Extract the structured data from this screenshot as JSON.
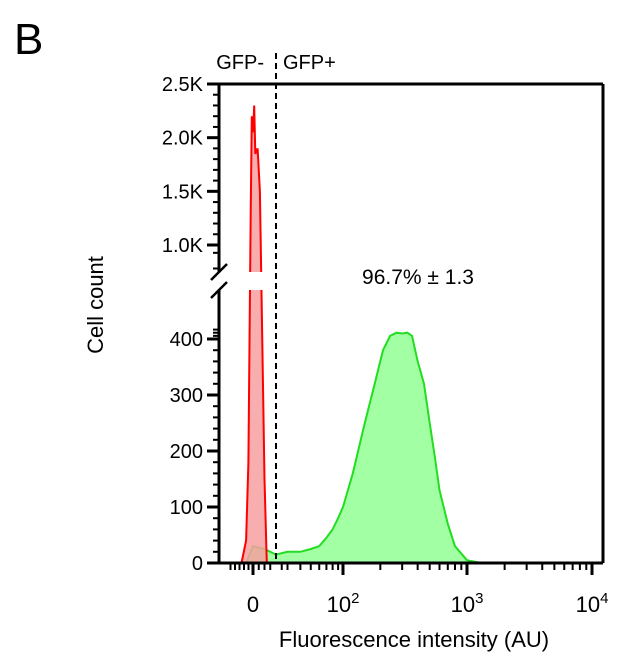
{
  "panel_label": "B",
  "chart_data": {
    "type": "area",
    "xlabel": "Fluorescence intensity (AU)",
    "ylabel": "Cell count",
    "x_scale": "biexponential",
    "x_ticks": [
      {
        "value": 0,
        "label": "0"
      },
      {
        "value": 100,
        "label": "10",
        "sup": "2"
      },
      {
        "value": 1000,
        "label": "10",
        "sup": "3"
      },
      {
        "value": 10000,
        "label": "10",
        "sup": "4"
      }
    ],
    "y_axis_break": true,
    "y_ticks_lower": [
      0,
      100,
      200,
      300,
      400
    ],
    "y_ticks_upper": [
      {
        "value": 1000,
        "label": "1.0K"
      },
      {
        "value": 1500,
        "label": "1.5K"
      },
      {
        "value": 2000,
        "label": "2.0K"
      },
      {
        "value": 2500,
        "label": "2.5K"
      }
    ],
    "gate": {
      "x": 20,
      "left_label": "GFP-",
      "right_label": "GFP+"
    },
    "annotation": "96.7% ± 1.3",
    "series": [
      {
        "color": "#ff0000",
        "fill": "#f7a0a0",
        "x": [
          -10,
          -6,
          -4,
          -2,
          -1,
          0,
          1,
          2,
          4,
          6,
          8,
          10,
          12
        ],
        "y": [
          0,
          40,
          180,
          1300,
          2200,
          2050,
          2300,
          1850,
          1900,
          1500,
          420,
          150,
          0
        ]
      },
      {
        "color": "#22dd22",
        "fill": "#99ff99",
        "x": [
          -6,
          0,
          10,
          20,
          30,
          40,
          50,
          60,
          70,
          80,
          90,
          100,
          120,
          150,
          180,
          210,
          240,
          270,
          300,
          330,
          360,
          400,
          450,
          500,
          550,
          600,
          700,
          800,
          1000,
          1300
        ],
        "y": [
          0,
          30,
          25,
          15,
          20,
          20,
          25,
          30,
          45,
          60,
          80,
          100,
          160,
          250,
          320,
          380,
          420,
          440,
          435,
          440,
          420,
          360,
          320,
          250,
          190,
          130,
          70,
          30,
          5,
          0
        ]
      }
    ]
  }
}
